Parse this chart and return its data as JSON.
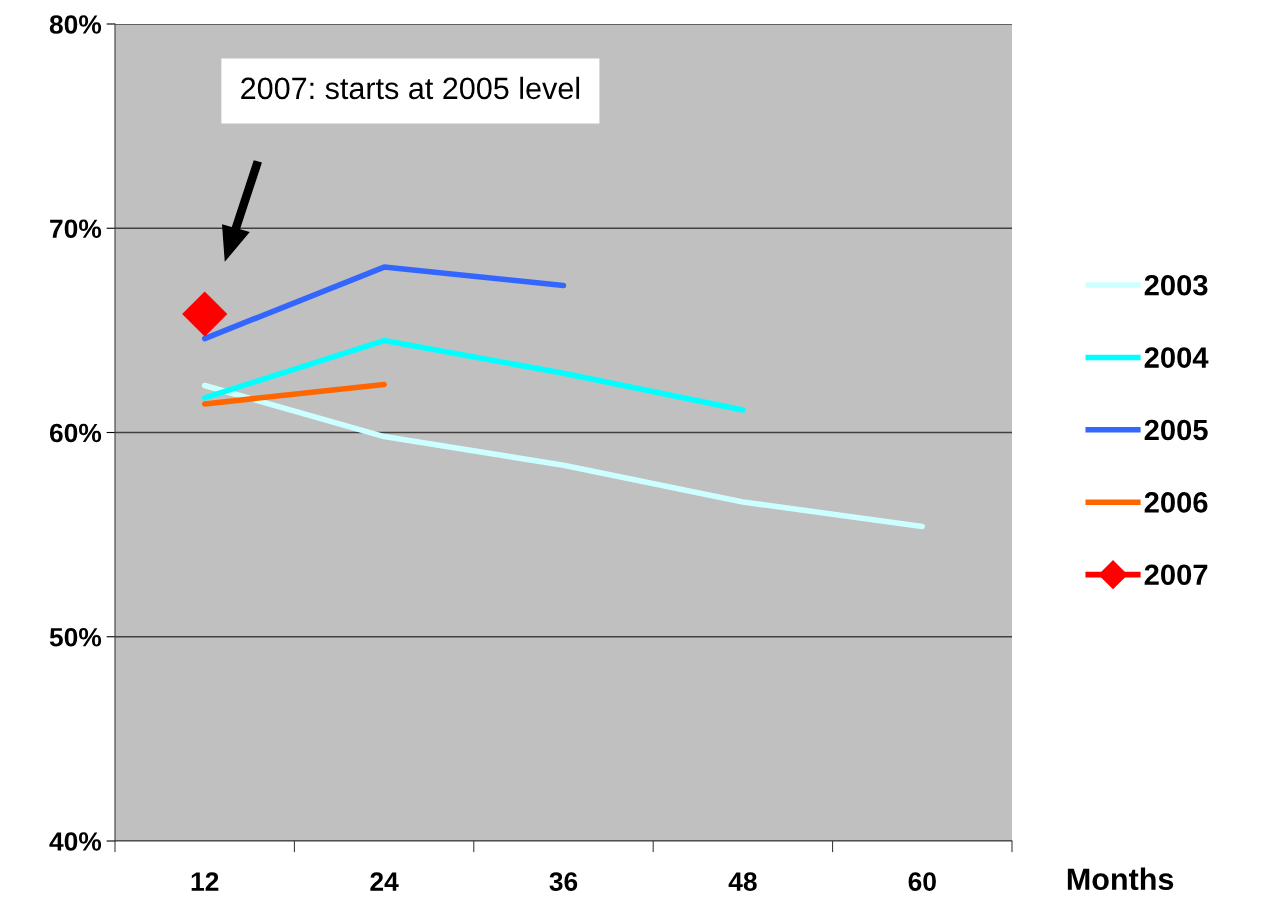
{
  "chart_data": {
    "type": "line",
    "categories": [
      "12",
      "24",
      "36",
      "48",
      "60"
    ],
    "xlabel": "Months",
    "ylim": [
      40,
      80
    ],
    "yticks": [
      {
        "value": 40,
        "label": "40%"
      },
      {
        "value": 50,
        "label": "50%"
      },
      {
        "value": 60,
        "label": "60%"
      },
      {
        "value": 70,
        "label": "70%"
      },
      {
        "value": 80,
        "label": "80%"
      }
    ],
    "grid": "y",
    "legend": "right",
    "series": [
      {
        "name": "2003",
        "color": "#ccffff",
        "values": [
          62.3,
          59.8,
          58.4,
          56.6,
          55.4
        ]
      },
      {
        "name": "2004",
        "color": "#00ffff",
        "values": [
          61.7,
          64.5,
          62.9,
          61.1,
          null
        ]
      },
      {
        "name": "2005",
        "color": "#3366ff",
        "values": [
          64.6,
          68.1,
          67.2,
          null,
          null
        ]
      },
      {
        "name": "2006",
        "color": "#ff6600",
        "values": [
          61.4,
          62.35,
          null,
          null,
          null
        ]
      },
      {
        "name": "2007",
        "color": "#ff0000",
        "marker": "diamond",
        "values": [
          65.8,
          null,
          null,
          null,
          null
        ]
      }
    ],
    "annotations": [
      "2007: starts at 2005 level"
    ]
  }
}
